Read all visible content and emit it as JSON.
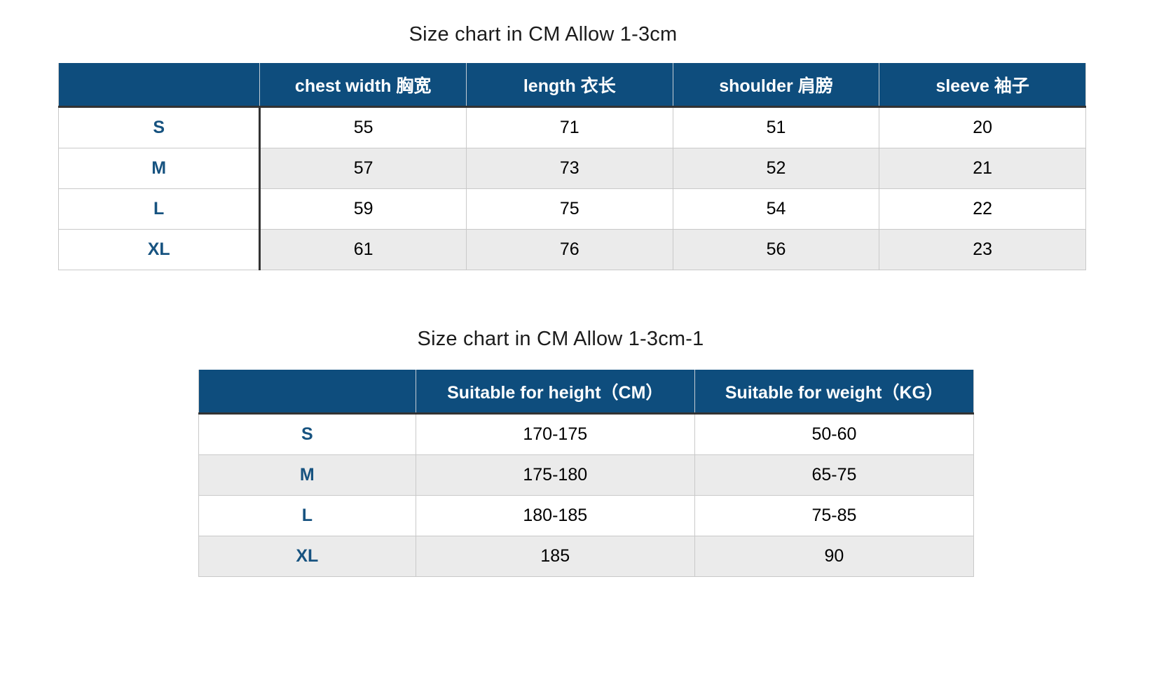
{
  "colors": {
    "header_background": "#0e4d7d",
    "header_text": "#ffffff",
    "size_label_text": "#175380",
    "stripe_background": "#ebebeb",
    "grid_border": "#c9c9c9",
    "dark_divider": "#333333",
    "body_text": "#000000",
    "title_text": "#1c1c1c",
    "page_background": "#ffffff"
  },
  "table1": {
    "title": "Size chart in CM Allow 1-3cm",
    "corner_label": "",
    "headers": [
      "chest width 胸宽",
      "length 衣长",
      "shoulder 肩膀",
      "sleeve 袖子"
    ],
    "rows": [
      {
        "size": "S",
        "cells": [
          "55",
          "71",
          "51",
          "20"
        ]
      },
      {
        "size": "M",
        "cells": [
          "57",
          "73",
          "52",
          "21"
        ]
      },
      {
        "size": "L",
        "cells": [
          "59",
          "75",
          "54",
          "22"
        ]
      },
      {
        "size": "XL",
        "cells": [
          "61",
          "76",
          "56",
          "23"
        ]
      }
    ]
  },
  "table2": {
    "title": "Size chart in CM Allow 1-3cm-1",
    "corner_label": "",
    "headers": [
      "Suitable for height（CM）",
      "Suitable for weight（KG）"
    ],
    "rows": [
      {
        "size": "S",
        "cells": [
          "170-175",
          "50-60"
        ]
      },
      {
        "size": "M",
        "cells": [
          "175-180",
          "65-75"
        ]
      },
      {
        "size": "L",
        "cells": [
          "180-185",
          "75-85"
        ]
      },
      {
        "size": "XL",
        "cells": [
          "185",
          "90"
        ]
      }
    ]
  }
}
